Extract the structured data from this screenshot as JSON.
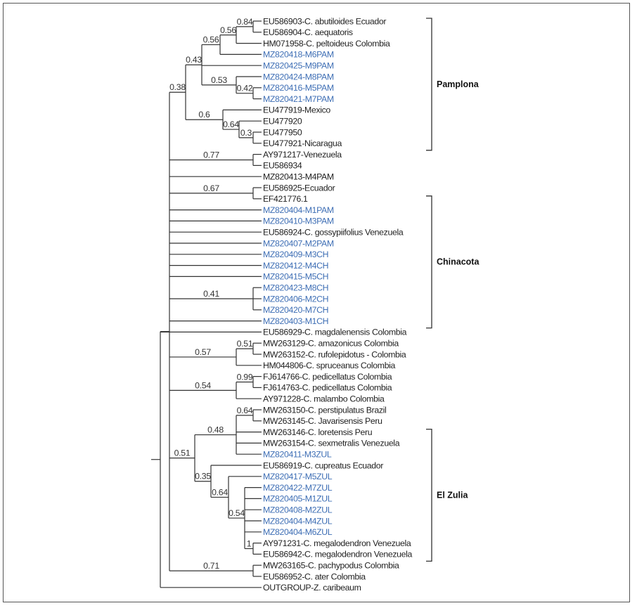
{
  "leaves": [
    {
      "label": "EU586903-C. abutiloides Ecuador",
      "highlight": false
    },
    {
      "label": "EU586904-C. aequatoris",
      "highlight": false
    },
    {
      "label": "HM071958-C. peltoideus Colombia",
      "highlight": false
    },
    {
      "label": "MZ820418-M6PAM",
      "highlight": true
    },
    {
      "label": "MZ820425-M9PAM",
      "highlight": true
    },
    {
      "label": "MZ820424-M8PAM",
      "highlight": true
    },
    {
      "label": "MZ820416-M5PAM",
      "highlight": true
    },
    {
      "label": "MZ820421-M7PAM",
      "highlight": true
    },
    {
      "label": "EU477919-Mexico",
      "highlight": false
    },
    {
      "label": "EU477920",
      "highlight": false
    },
    {
      "label": "EU477950",
      "highlight": false
    },
    {
      "label": "EU477921-Nicaragua",
      "highlight": false
    },
    {
      "label": "AY971217-Venezuela",
      "highlight": false
    },
    {
      "label": "EU586934",
      "highlight": false
    },
    {
      "label": "MZ820413-M4PAM",
      "highlight": false
    },
    {
      "label": "EU586925-Ecuador",
      "highlight": false
    },
    {
      "label": "EF421776.1",
      "highlight": false
    },
    {
      "label": "MZ820404-M1PAM",
      "highlight": true
    },
    {
      "label": "MZ820410-M3PAM",
      "highlight": true
    },
    {
      "label": "EU586924-C. gossypiifolius Venezuela",
      "highlight": false
    },
    {
      "label": "MZ820407-M2PAM",
      "highlight": true
    },
    {
      "label": "MZ820409-M3CH",
      "highlight": true
    },
    {
      "label": "MZ820412-M4CH",
      "highlight": true
    },
    {
      "label": "MZ820415-M5CH",
      "highlight": true
    },
    {
      "label": "MZ820423-M8CH",
      "highlight": true
    },
    {
      "label": "MZ820406-M2CH",
      "highlight": true
    },
    {
      "label": "MZ820420-M7CH",
      "highlight": true
    },
    {
      "label": "MZ820403-M1CH",
      "highlight": true
    },
    {
      "label": "EU586929-C. magdalenensis Colombia",
      "highlight": false
    },
    {
      "label": "MW263129-C. amazonicus Colombia",
      "highlight": false
    },
    {
      "label": "MW263152-C. rufolepidotus - Colombia",
      "highlight": false
    },
    {
      "label": "HM044806-C. spruceanus Colombia",
      "highlight": false
    },
    {
      "label": "FJ614766-C. pedicellatus Colombia",
      "highlight": false
    },
    {
      "label": "FJ614763-C. pedicellatus Colombia",
      "highlight": false
    },
    {
      "label": "AY971228-C. malambo Colombia",
      "highlight": false
    },
    {
      "label": "MW263150-C. perstipulatus Brazil",
      "highlight": false
    },
    {
      "label": "MW263145-C. Javarisensis Peru",
      "highlight": false
    },
    {
      "label": "MW263146-C. loretensis Peru",
      "highlight": false
    },
    {
      "label": "MW263154-C. sexmetralis Venezuela",
      "highlight": false
    },
    {
      "label": "MZ820411-M3ZUL",
      "highlight": true
    },
    {
      "label": "EU586919-C. cupreatus Ecuador",
      "highlight": false
    },
    {
      "label": "MZ820417-M5ZUL",
      "highlight": true
    },
    {
      "label": "MZ820422-M7ZUL",
      "highlight": true
    },
    {
      "label": "MZ820405-M1ZUL",
      "highlight": true
    },
    {
      "label": "MZ820408-M2ZUL",
      "highlight": true
    },
    {
      "label": "MZ820404-M4ZUL",
      "highlight": true
    },
    {
      "label": "MZ820404-M6ZUL",
      "highlight": true
    },
    {
      "label": "AY971231-C. megalodendron Venezuela",
      "highlight": false
    },
    {
      "label": "EU586942-C. megalodendron Venezuela",
      "highlight": false
    },
    {
      "label": "MW263165-C. pachypodus Colombia",
      "highlight": false
    },
    {
      "label": "EU586952-C. ater Colombia",
      "highlight": false
    },
    {
      "label": "OUTGROUP-Z. caribeaum",
      "highlight": false
    }
  ],
  "nodes": [
    {
      "id": "n84",
      "support": "0.84",
      "children": [
        0,
        1
      ]
    },
    {
      "id": "n56a",
      "support": "0.56",
      "children": [
        "n84",
        2
      ]
    },
    {
      "id": "n56b",
      "support": "0.56",
      "children": [
        "n56a",
        3
      ]
    },
    {
      "id": "n42",
      "support": "0.42",
      "children": [
        6,
        7
      ]
    },
    {
      "id": "n53",
      "support": "0.53",
      "children": [
        5,
        "n42"
      ]
    },
    {
      "id": "n43",
      "support": "0.43",
      "children": [
        "n56b",
        4,
        "n53"
      ]
    },
    {
      "id": "n03",
      "support": "0.3",
      "children": [
        10,
        11
      ]
    },
    {
      "id": "n64",
      "support": "0.64",
      "children": [
        9,
        "n03"
      ]
    },
    {
      "id": "n6",
      "support": "0.6",
      "children": [
        8,
        "n64"
      ]
    },
    {
      "id": "n38",
      "support": "0.38",
      "children": [
        "n43",
        "n6"
      ]
    },
    {
      "id": "n77",
      "support": "0.77",
      "children": [
        12,
        13
      ]
    },
    {
      "id": "n67",
      "support": "0.67",
      "children": [
        15,
        16
      ]
    },
    {
      "id": "n41",
      "support": "0.41",
      "children": [
        24,
        25,
        26
      ]
    },
    {
      "id": "n51a",
      "support": "0.51",
      "children": [
        29,
        30
      ]
    },
    {
      "id": "n57",
      "support": "0.57",
      "children": [
        "n51a",
        31
      ]
    },
    {
      "id": "n99",
      "support": "0.99",
      "children": [
        32,
        33
      ]
    },
    {
      "id": "n54",
      "support": "0.54",
      "children": [
        "n99",
        34
      ]
    },
    {
      "id": "n64a",
      "support": "0.64",
      "children": [
        35,
        36
      ]
    },
    {
      "id": "n48",
      "support": "0.48",
      "children": [
        "n64a",
        37,
        38,
        39
      ]
    },
    {
      "id": "n1",
      "support": "1",
      "children": [
        47,
        48
      ]
    },
    {
      "id": "n54b",
      "support": "0.54",
      "children": [
        42,
        43,
        44,
        45,
        46,
        "n1"
      ]
    },
    {
      "id": "n64b",
      "support": "0.64",
      "children": [
        41,
        "n54b"
      ]
    },
    {
      "id": "n35",
      "support": "0.35",
      "children": [
        40,
        "n64b"
      ]
    },
    {
      "id": "n51",
      "support": "0.51",
      "children": [
        "n48",
        "n35"
      ]
    },
    {
      "id": "n71",
      "support": "0.71",
      "children": [
        49,
        50
      ]
    },
    {
      "id": "A",
      "support": "",
      "children": [
        "n38",
        "n77",
        14,
        "n67",
        17,
        18,
        19,
        20,
        21,
        22,
        23,
        "n41",
        27,
        "n57",
        "n54",
        "n51",
        "n71"
      ]
    },
    {
      "id": "root",
      "support": "",
      "children": [
        "A",
        28,
        51
      ]
    }
  ],
  "groups": [
    {
      "label": "Pamplona",
      "first_leaf": 0,
      "last_leaf": 11
    },
    {
      "label": "Chinacota",
      "first_leaf": 16,
      "last_leaf": 27
    },
    {
      "label": "El Zulia",
      "first_leaf": 37,
      "last_leaf": 48
    }
  ],
  "colors": {
    "highlight": "#3f6fb5",
    "text": "#222222",
    "line": "#333333"
  }
}
